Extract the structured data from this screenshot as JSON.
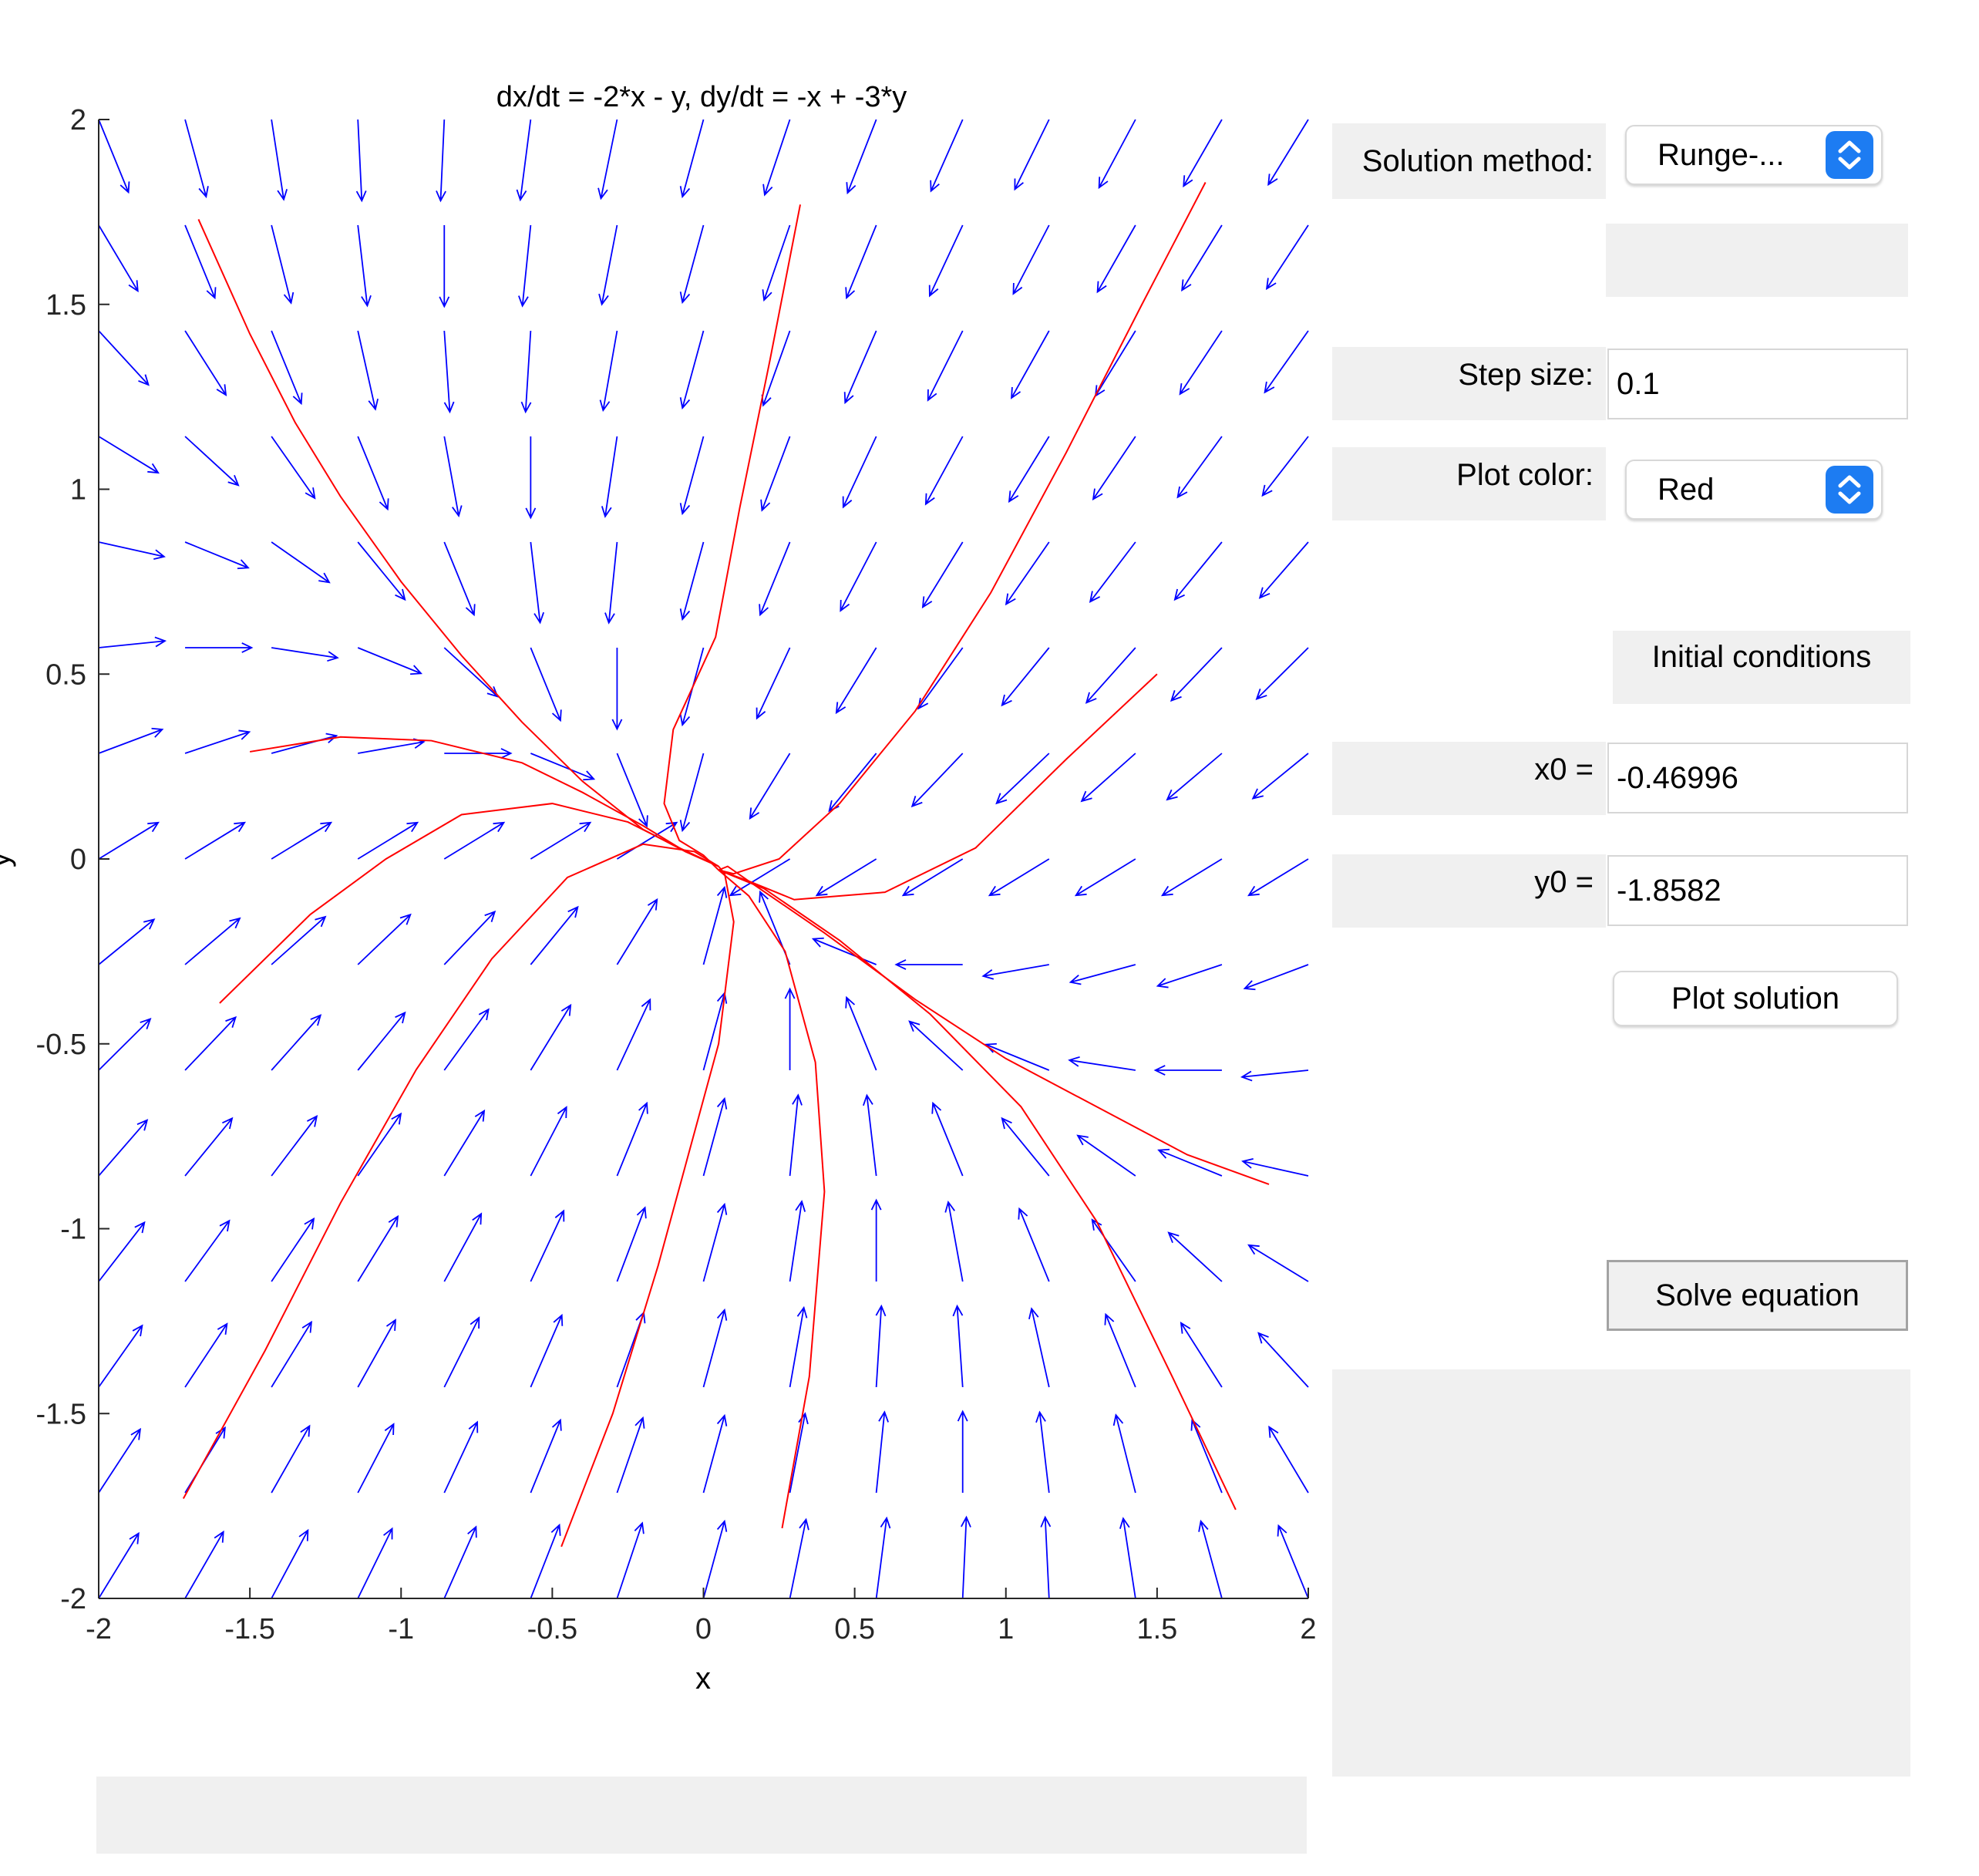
{
  "chart_data": {
    "type": "vector-field",
    "title": "dx/dt = -2*x - y, dy/dt = -x + -3*y",
    "xlabel": "x",
    "ylabel": "y",
    "xlim": [
      -2,
      2
    ],
    "ylim": [
      -2,
      2
    ],
    "xticks": [
      "-2",
      "-1.5",
      "-1",
      "-0.5",
      "0",
      "0.5",
      "1",
      "1.5",
      "2"
    ],
    "yticks": [
      "-2",
      "-1.5",
      "-1",
      "-0.5",
      "0",
      "0.5",
      "1",
      "1.5",
      "2"
    ],
    "field": {
      "dx_coeff": [
        -2,
        -1
      ],
      "dy_coeff": [
        -1,
        -3
      ],
      "grid": [
        -2,
        2,
        15
      ],
      "color": "#0000ff"
    },
    "trajectory_color": "#ff0000",
    "trajectories": [
      [
        [
          -1.67,
          1.73
        ],
        [
          -1.5,
          1.42
        ],
        [
          -1.35,
          1.18
        ],
        [
          -1.2,
          0.98
        ],
        [
          -1.0,
          0.75
        ],
        [
          -0.8,
          0.55
        ],
        [
          -0.6,
          0.37
        ],
        [
          -0.4,
          0.21
        ],
        [
          -0.2,
          0.08
        ],
        [
          -0.06,
          0.02
        ],
        [
          0.05,
          -0.02
        ]
      ],
      [
        [
          0.32,
          1.77
        ],
        [
          0.22,
          1.35
        ],
        [
          0.12,
          0.95
        ],
        [
          0.04,
          0.6
        ],
        [
          -0.1,
          0.35
        ],
        [
          -0.13,
          0.15
        ],
        [
          -0.08,
          0.05
        ],
        [
          0.0,
          0.01
        ],
        [
          0.05,
          -0.03
        ]
      ],
      [
        [
          1.66,
          1.83
        ],
        [
          1.45,
          1.5
        ],
        [
          1.2,
          1.1
        ],
        [
          0.95,
          0.72
        ],
        [
          0.7,
          0.4
        ],
        [
          0.45,
          0.15
        ],
        [
          0.25,
          0.0
        ],
        [
          0.1,
          -0.04
        ],
        [
          0.05,
          -0.03
        ]
      ],
      [
        [
          1.5,
          0.5
        ],
        [
          1.2,
          0.27
        ],
        [
          0.9,
          0.03
        ],
        [
          0.6,
          -0.09
        ],
        [
          0.3,
          -0.11
        ],
        [
          0.15,
          -0.06
        ],
        [
          0.08,
          -0.02
        ],
        [
          0.05,
          -0.03
        ]
      ],
      [
        [
          -1.5,
          0.29
        ],
        [
          -1.2,
          0.33
        ],
        [
          -0.9,
          0.32
        ],
        [
          -0.6,
          0.26
        ],
        [
          -0.4,
          0.18
        ],
        [
          -0.2,
          0.09
        ],
        [
          -0.06,
          0.02
        ],
        [
          0.05,
          -0.02
        ]
      ],
      [
        [
          -1.6,
          -0.39
        ],
        [
          -1.3,
          -0.15
        ],
        [
          -1.05,
          0.0
        ],
        [
          -0.8,
          0.12
        ],
        [
          -0.5,
          0.15
        ],
        [
          -0.25,
          0.1
        ],
        [
          -0.08,
          0.03
        ],
        [
          0.05,
          -0.02
        ]
      ],
      [
        [
          -1.72,
          -1.73
        ],
        [
          -1.45,
          -1.33
        ],
        [
          -1.2,
          -0.93
        ],
        [
          -0.95,
          -0.57
        ],
        [
          -0.7,
          -0.27
        ],
        [
          -0.45,
          -0.05
        ],
        [
          -0.2,
          0.04
        ],
        [
          -0.03,
          0.02
        ],
        [
          0.05,
          -0.02
        ]
      ],
      [
        [
          -0.47,
          -1.86
        ],
        [
          -0.3,
          -1.5
        ],
        [
          -0.15,
          -1.1
        ],
        [
          0.05,
          -0.5
        ],
        [
          0.1,
          -0.17
        ],
        [
          0.07,
          -0.04
        ],
        [
          0.05,
          -0.02
        ]
      ],
      [
        [
          0.26,
          -1.81
        ],
        [
          0.35,
          -1.4
        ],
        [
          0.4,
          -0.9
        ],
        [
          0.37,
          -0.55
        ],
        [
          0.27,
          -0.25
        ],
        [
          0.15,
          -0.1
        ],
        [
          0.05,
          -0.03
        ]
      ],
      [
        [
          1.76,
          -1.76
        ],
        [
          1.55,
          -1.4
        ],
        [
          1.3,
          -0.98
        ],
        [
          1.05,
          -0.67
        ],
        [
          0.75,
          -0.42
        ],
        [
          0.45,
          -0.22
        ],
        [
          0.2,
          -0.08
        ],
        [
          0.05,
          -0.03
        ]
      ],
      [
        [
          1.87,
          -0.88
        ],
        [
          1.6,
          -0.8
        ],
        [
          1.3,
          -0.67
        ],
        [
          1.0,
          -0.54
        ],
        [
          0.7,
          -0.38
        ],
        [
          0.4,
          -0.2
        ],
        [
          0.15,
          -0.06
        ],
        [
          0.05,
          -0.03
        ]
      ]
    ]
  },
  "controls": {
    "solution_method_label": "Solution method:",
    "solution_method_value": "Runge-...",
    "step_size_label": "Step size:",
    "step_size_value": "0.1",
    "plot_color_label": "Plot color:",
    "plot_color_value": "Red",
    "initial_conditions_label": "Initial conditions",
    "x0_label": "x0 =",
    "x0_value": "-0.46996",
    "y0_label": "y0 =",
    "y0_value": "-1.8582",
    "plot_solution_button": "Plot solution",
    "solve_equation_button": "Solve equation"
  },
  "colors": {
    "panel_bg": "#f0f0f0",
    "popup_accent": "#1d7cf2"
  },
  "icons": {
    "popup_arrows": "chevron-up-down-icon"
  }
}
